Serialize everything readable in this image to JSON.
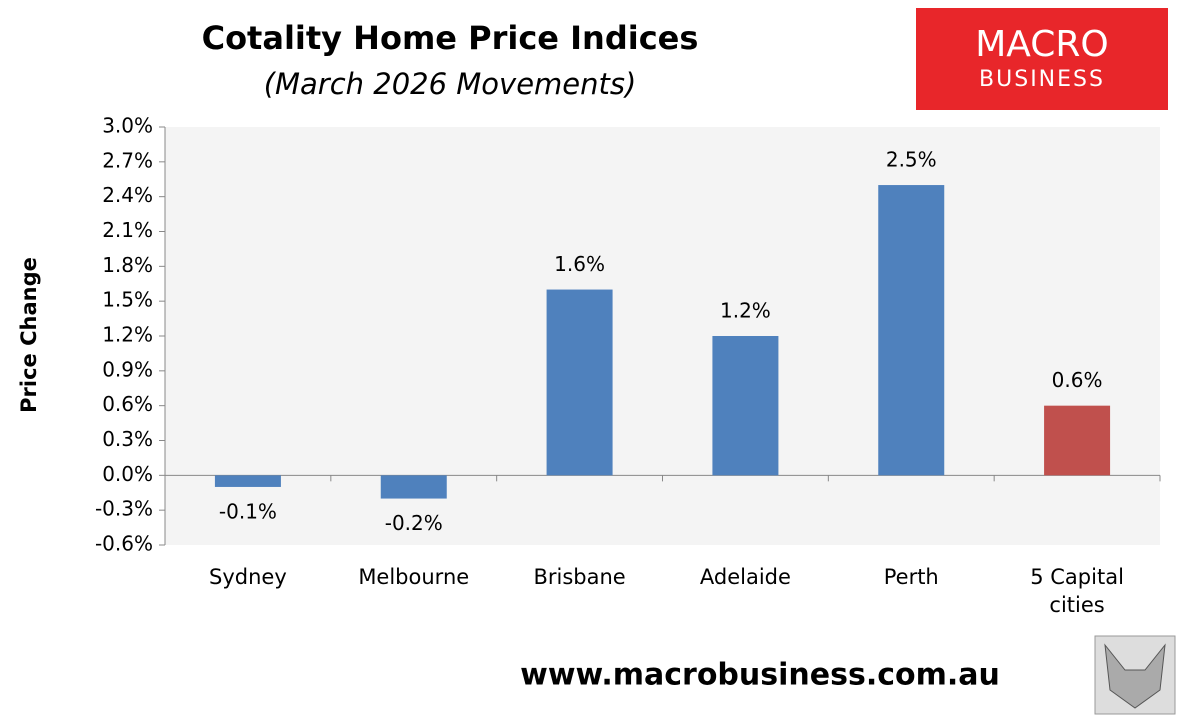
{
  "chart_data": {
    "type": "bar",
    "title": "Cotality Home Price Indices",
    "subtitle": "(March 2026 Movements)",
    "y_label": "Price Change",
    "categories": [
      "Sydney",
      "Melbourne",
      "Brisbane",
      "Adelaide",
      "Perth",
      "5 Capital cities"
    ],
    "values": [
      -0.1,
      -0.2,
      1.6,
      1.2,
      2.5,
      0.6
    ],
    "value_labels": [
      "-0.1%",
      "-0.2%",
      "1.6%",
      "1.2%",
      "2.5%",
      "0.6%"
    ],
    "colors": [
      "#4f81bd",
      "#4f81bd",
      "#4f81bd",
      "#4f81bd",
      "#4f81bd",
      "#c0504d"
    ],
    "ylim": [
      -0.6,
      3.0
    ],
    "yticks": [
      {
        "value": -0.6,
        "label": "-0.6%"
      },
      {
        "value": -0.3,
        "label": "-0.3%"
      },
      {
        "value": 0,
        "label": "0.0%"
      },
      {
        "value": 0.3,
        "label": "0.3%"
      },
      {
        "value": 0.6,
        "label": "0.6%"
      },
      {
        "value": 0.9,
        "label": "0.9%"
      },
      {
        "value": 1.2,
        "label": "1.2%"
      },
      {
        "value": 1.5,
        "label": "1.5%"
      },
      {
        "value": 1.8,
        "label": "1.8%"
      },
      {
        "value": 2.1,
        "label": "2.1%"
      },
      {
        "value": 2.4,
        "label": "2.4%"
      },
      {
        "value": 2.7,
        "label": "2.7%"
      },
      {
        "value": 3.0,
        "label": "3.0%"
      }
    ],
    "grid": false
  },
  "branding": {
    "logo_line1": "MACRO",
    "logo_line2": "BUSINESS",
    "website": "www.macrobusiness.com.au"
  }
}
